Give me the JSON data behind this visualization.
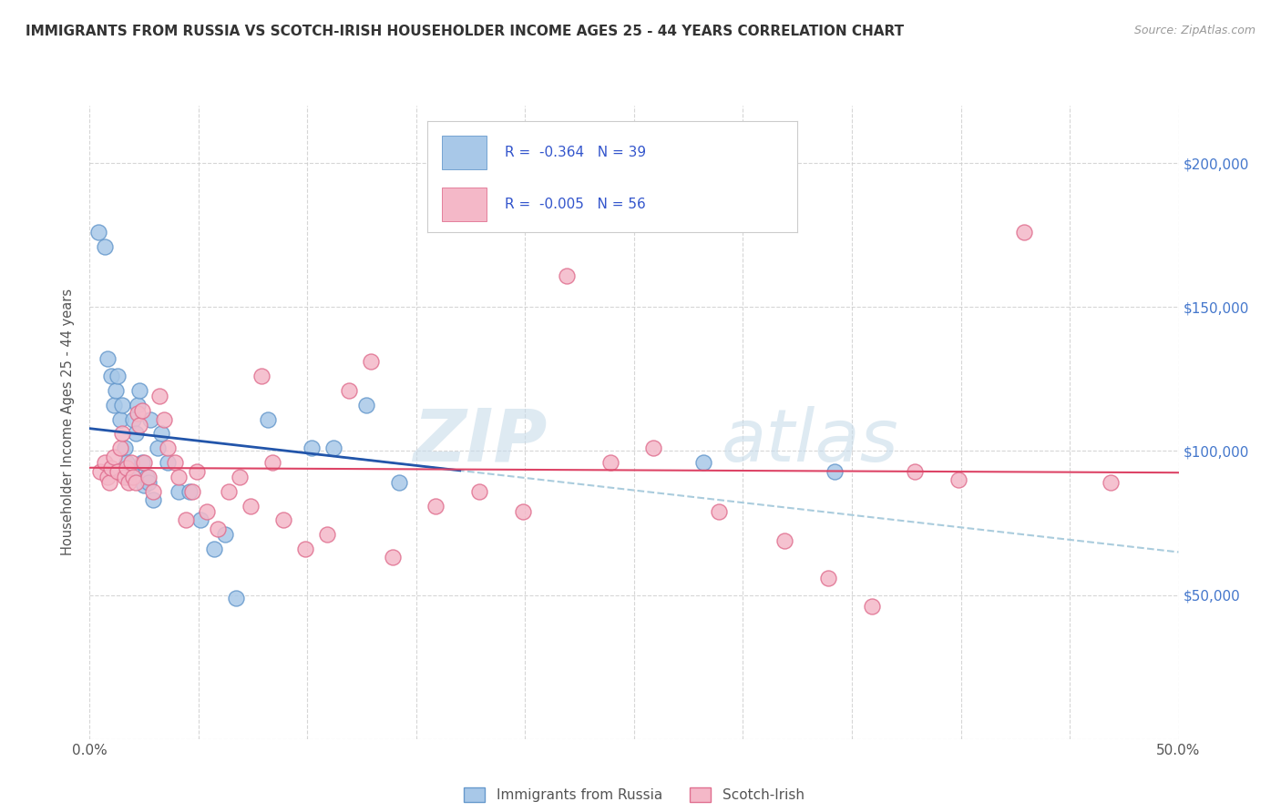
{
  "title": "IMMIGRANTS FROM RUSSIA VS SCOTCH-IRISH HOUSEHOLDER INCOME AGES 25 - 44 YEARS CORRELATION CHART",
  "source": "Source: ZipAtlas.com",
  "ylabel": "Householder Income Ages 25 - 44 years",
  "xmin": 0.0,
  "xmax": 0.5,
  "ymin": 0,
  "ymax": 220000,
  "xticks": [
    0.0,
    0.05,
    0.1,
    0.15,
    0.2,
    0.25,
    0.3,
    0.35,
    0.4,
    0.45,
    0.5
  ],
  "yticks": [
    0,
    50000,
    100000,
    150000,
    200000
  ],
  "ytick_labels": [
    "",
    "$50,000",
    "$100,000",
    "$150,000",
    "$200,000"
  ],
  "russia_color": "#a8c8e8",
  "russia_edge": "#6699cc",
  "scotch_color": "#f4b8c8",
  "scotch_edge": "#e07090",
  "russia_R": "-0.364",
  "russia_N": "39",
  "scotch_R": "-0.005",
  "scotch_N": "56",
  "blue_line_color": "#2255aa",
  "pink_line_color": "#dd4466",
  "dashed_line_color": "#aaccdd",
  "watermark_zip": "ZIP",
  "watermark_atlas": "atlas",
  "background_color": "#ffffff",
  "grid_color": "#cccccc",
  "legend_color": "#3355cc",
  "russia_x": [
    0.004,
    0.007,
    0.008,
    0.01,
    0.011,
    0.012,
    0.013,
    0.014,
    0.015,
    0.016,
    0.017,
    0.018,
    0.019,
    0.02,
    0.021,
    0.022,
    0.023,
    0.024,
    0.025,
    0.026,
    0.027,
    0.028,
    0.029,
    0.031,
    0.033,
    0.036,
    0.041,
    0.046,
    0.051,
    0.057,
    0.062,
    0.067,
    0.082,
    0.102,
    0.112,
    0.127,
    0.142,
    0.282,
    0.342
  ],
  "russia_y": [
    176000,
    171000,
    132000,
    126000,
    116000,
    121000,
    126000,
    111000,
    116000,
    101000,
    96000,
    91000,
    93000,
    111000,
    106000,
    116000,
    121000,
    96000,
    88000,
    91000,
    89000,
    111000,
    83000,
    101000,
    106000,
    96000,
    86000,
    86000,
    76000,
    66000,
    71000,
    49000,
    111000,
    101000,
    101000,
    116000,
    89000,
    96000,
    93000
  ],
  "scotch_x": [
    0.005,
    0.007,
    0.008,
    0.009,
    0.01,
    0.011,
    0.013,
    0.014,
    0.015,
    0.016,
    0.017,
    0.018,
    0.019,
    0.02,
    0.021,
    0.022,
    0.023,
    0.024,
    0.025,
    0.027,
    0.029,
    0.032,
    0.034,
    0.036,
    0.039,
    0.041,
    0.044,
    0.047,
    0.049,
    0.054,
    0.059,
    0.064,
    0.069,
    0.074,
    0.079,
    0.084,
    0.089,
    0.099,
    0.109,
    0.119,
    0.129,
    0.139,
    0.159,
    0.179,
    0.199,
    0.219,
    0.239,
    0.259,
    0.289,
    0.319,
    0.339,
    0.359,
    0.379,
    0.399,
    0.429,
    0.469
  ],
  "scotch_y": [
    93000,
    96000,
    91000,
    89000,
    94000,
    98000,
    93000,
    101000,
    106000,
    91000,
    94000,
    89000,
    96000,
    91000,
    89000,
    113000,
    109000,
    114000,
    96000,
    91000,
    86000,
    119000,
    111000,
    101000,
    96000,
    91000,
    76000,
    86000,
    93000,
    79000,
    73000,
    86000,
    91000,
    81000,
    126000,
    96000,
    76000,
    66000,
    71000,
    121000,
    131000,
    63000,
    81000,
    86000,
    79000,
    161000,
    96000,
    101000,
    79000,
    69000,
    56000,
    46000,
    93000,
    90000,
    176000,
    89000
  ]
}
